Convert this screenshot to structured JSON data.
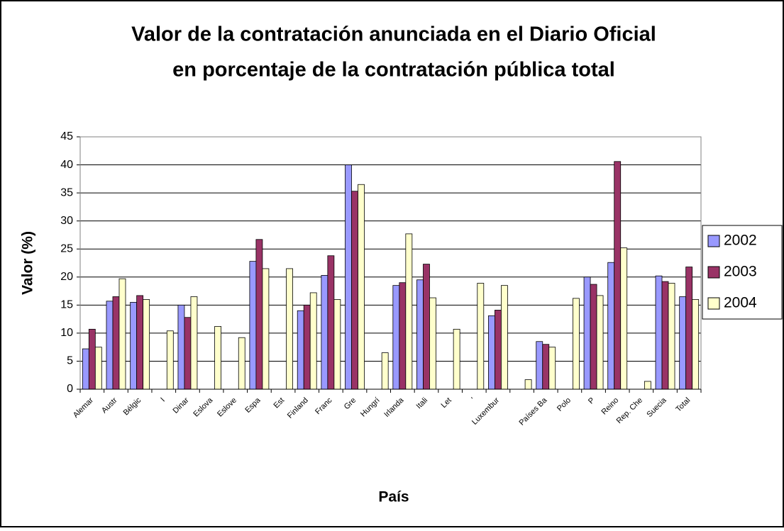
{
  "chart_data": {
    "type": "bar",
    "title": [
      "Valor de la contratación anunciada en el Diario Oficial",
      "en porcentaje de la contratación pública total"
    ],
    "x_label": "País",
    "y_label": "Valor (%)",
    "categories": [
      "Alemar",
      "Austr",
      "Bélgic",
      "I",
      "Dinar",
      "Eslova",
      "Eslove",
      "Espa",
      "Est",
      "Finland",
      "Franc",
      "Gre",
      "Hungrí",
      "Irlanda",
      "Itali",
      "Let",
      "'",
      "Luxembur",
      null,
      "Países Ba",
      "Polo",
      "P",
      "Reino",
      "Rep. Che",
      "Suecia",
      "Total"
    ],
    "series": [
      {
        "name": "2002",
        "color": "#9999ff",
        "values": [
          7.2,
          15.7,
          15.5,
          null,
          15.0,
          null,
          null,
          22.8,
          null,
          14.0,
          20.3,
          40.0,
          null,
          18.5,
          19.5,
          null,
          null,
          13.1,
          null,
          8.5,
          null,
          20.0,
          22.6,
          null,
          20.2,
          16.5
        ]
      },
      {
        "name": "2003",
        "color": "#993366",
        "values": [
          10.7,
          16.5,
          16.7,
          null,
          12.8,
          null,
          null,
          26.7,
          null,
          15.0,
          23.8,
          35.3,
          null,
          19.0,
          22.3,
          null,
          null,
          14.1,
          null,
          8.0,
          null,
          18.7,
          40.6,
          null,
          19.2,
          21.8
        ]
      },
      {
        "name": "2004",
        "color": "#ffffcc",
        "values": [
          7.5,
          19.7,
          16.0,
          10.4,
          16.5,
          11.2,
          9.2,
          21.5,
          21.5,
          17.2,
          16.0,
          36.5,
          6.5,
          27.7,
          16.3,
          10.7,
          18.9,
          18.5,
          1.7,
          7.5,
          16.2,
          16.7,
          25.2,
          1.4,
          18.9,
          16.0
        ]
      }
    ],
    "ylim": [
      0,
      45
    ],
    "yticks": [
      0,
      5,
      10,
      15,
      20,
      25,
      30,
      35,
      40,
      45
    ],
    "grid": true,
    "legend": "right"
  }
}
